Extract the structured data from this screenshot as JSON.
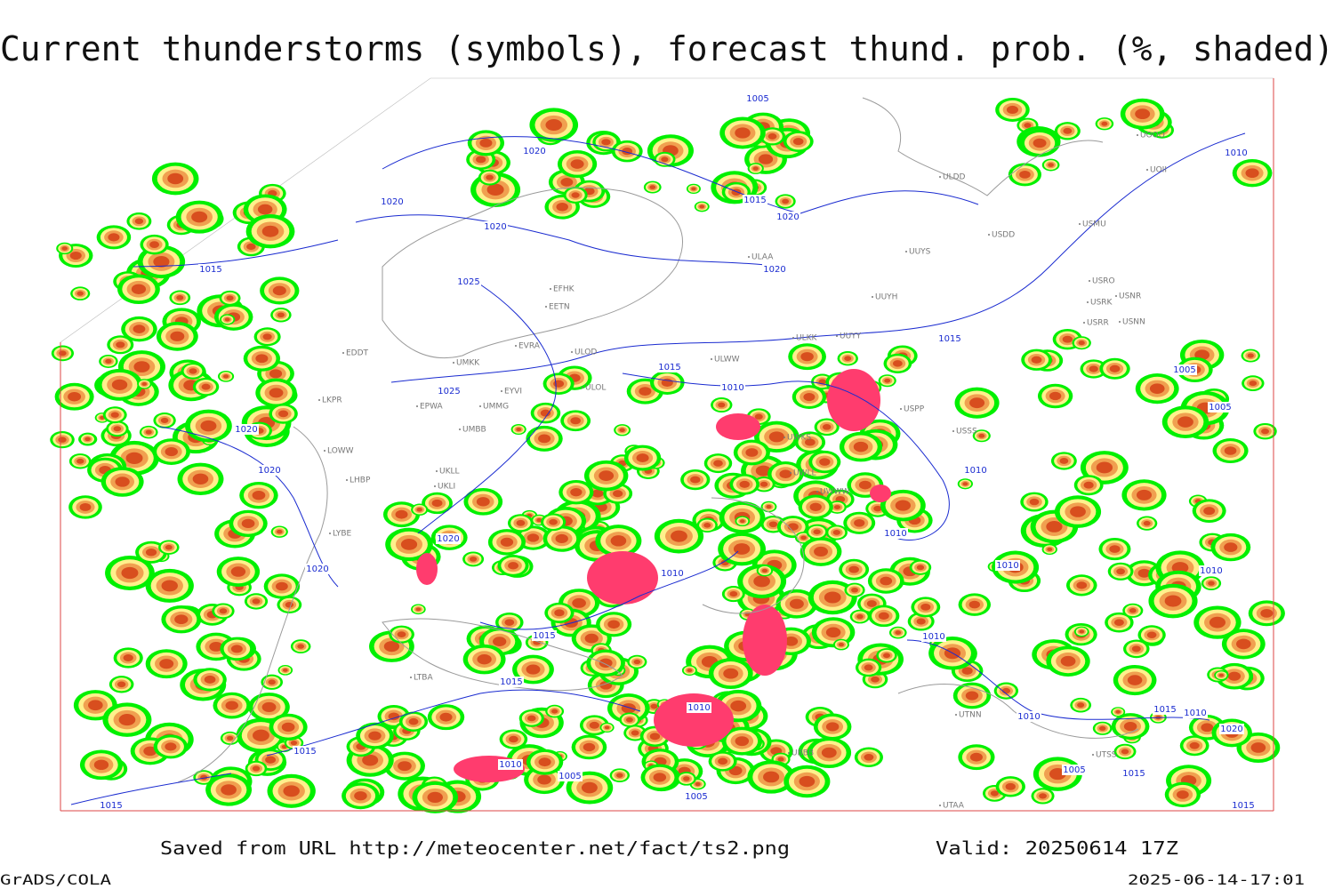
{
  "header": {
    "title": "Current thunderstorms (symbols), forecast thund. prob. (%, shaded)"
  },
  "footer": {
    "source": "Saved from URL http://meteocenter.net/fact/ts2.png",
    "valid": "Valid: 20250614 17Z",
    "software": "GrADS/COLA",
    "timestamp": "2025-06-14-17:01"
  },
  "isobar_labels": [
    "1005",
    "1020",
    "1020",
    "1015",
    "1020",
    "1020",
    "1015",
    "1020",
    "1025",
    "1015",
    "1015",
    "1010",
    "1025",
    "1020",
    "1020",
    "1010",
    "1020",
    "1010",
    "1020",
    "1010",
    "1010",
    "1010",
    "1015",
    "1010",
    "1015",
    "1010",
    "1010",
    "1015",
    "1010",
    "1020",
    "1015",
    "1010",
    "1005",
    "1005",
    "1015",
    "1005",
    "1015",
    "1015",
    "1010",
    "1005",
    "1005"
  ],
  "station_labels": [
    "ULDD",
    "USDD",
    "USMU",
    "UUYS",
    "ULAA",
    "EFHK",
    "EETN",
    "UUYH",
    "USRO",
    "USRK",
    "USNR",
    "USRR",
    "USNN",
    "UUYY",
    "ULKK",
    "ULOD",
    "EVRA",
    "EDDT",
    "UMKK",
    "ULWW",
    "ULOL",
    "EYVI",
    "LKPR",
    "EPWA",
    "UMMG",
    "USPP",
    "UMBB",
    "USSS",
    "LOWW",
    "UWKS",
    "UKLL",
    "UWLL",
    "LHBP",
    "UKLI",
    "UWWW",
    "UOOO",
    "UOII",
    "UTNN",
    "UTAA",
    "LTBA",
    "UBBB",
    "UTSS",
    "LYBE"
  ]
}
